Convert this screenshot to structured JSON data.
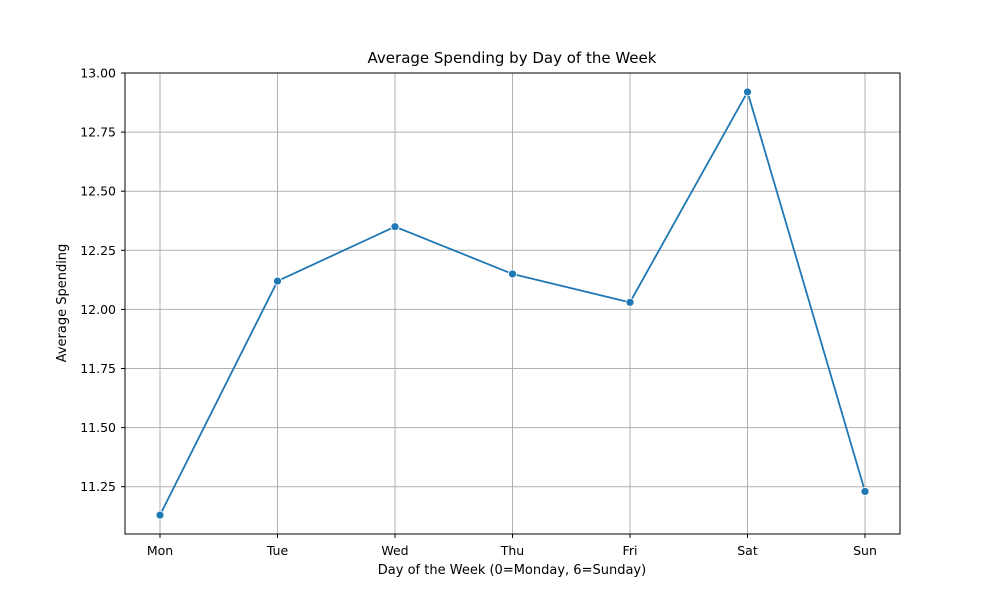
{
  "chart_data": {
    "type": "line",
    "title": "Average Spending by Day of the Week",
    "xlabel": "Day of the Week (0=Monday, 6=Sunday)",
    "ylabel": "Average Spending",
    "categories": [
      "Mon",
      "Tue",
      "Wed",
      "Thu",
      "Fri",
      "Sat",
      "Sun"
    ],
    "series": [
      {
        "values": [
          11.13,
          12.12,
          12.35,
          12.15,
          12.03,
          12.92,
          11.23
        ]
      }
    ],
    "y_ticks": [
      "11.25",
      "11.50",
      "11.75",
      "12.00",
      "12.25",
      "12.50",
      "12.75",
      "13.00"
    ],
    "ylim": [
      11.05,
      13.0
    ],
    "grid": true,
    "markers": true,
    "line_color": "#1f77b4",
    "grid_color": "#b0b0b0"
  }
}
